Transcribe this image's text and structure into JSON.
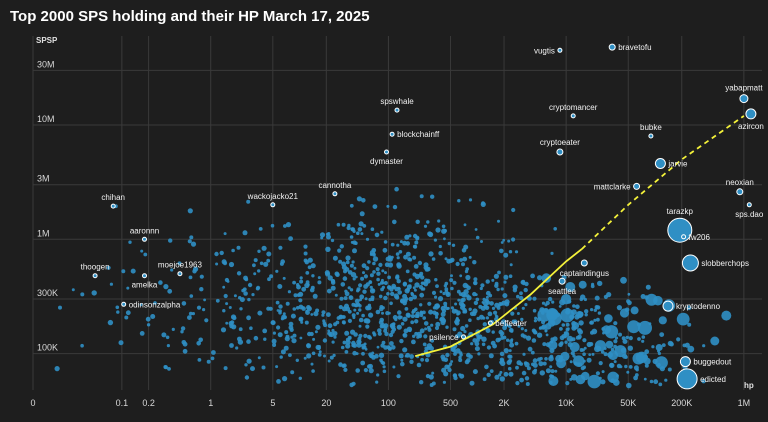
{
  "chart_data": {
    "type": "scatter",
    "title": "Top 2000 SPS holding and their HP March 17, 2025",
    "xlabel": "hp",
    "ylabel": "SPSP",
    "x_scale": "log",
    "y_scale": "log",
    "x_ticks": [
      {
        "v": 0.01,
        "label": "0"
      },
      {
        "v": 0.1,
        "label": "0.1"
      },
      {
        "v": 0.2,
        "label": "0.2"
      },
      {
        "v": 1,
        "label": "1"
      },
      {
        "v": 5,
        "label": "5"
      },
      {
        "v": 20,
        "label": "20"
      },
      {
        "v": 100,
        "label": "100"
      },
      {
        "v": 500,
        "label": "500"
      },
      {
        "v": 2000,
        "label": "2K"
      },
      {
        "v": 10000,
        "label": "10K"
      },
      {
        "v": 50000,
        "label": "50K"
      },
      {
        "v": 200000,
        "label": "200K"
      },
      {
        "v": 1000000,
        "label": "1M"
      }
    ],
    "y_ticks": [
      {
        "v": 100000,
        "label": "100K"
      },
      {
        "v": 300000,
        "label": "300K"
      },
      {
        "v": 1000000,
        "label": "1M"
      },
      {
        "v": 3000000,
        "label": "3M"
      },
      {
        "v": 10000000,
        "label": "10M"
      },
      {
        "v": 30000000,
        "label": "30M"
      }
    ],
    "xlim": [
      0.01,
      1600000
    ],
    "ylim": [
      48000,
      60000000
    ],
    "grid": true,
    "point_color": "#2f8fc4",
    "labeled_points": [
      {
        "name": "vugtis",
        "x": 8500,
        "y": 45000000,
        "size": 2,
        "label_pos": "left"
      },
      {
        "name": "bravetofu",
        "x": 33000,
        "y": 48000000,
        "size": 3,
        "label_pos": "right"
      },
      {
        "name": "yabapmatt",
        "x": 1000000,
        "y": 17000000,
        "size": 4,
        "label_pos": "top"
      },
      {
        "name": "azircon",
        "x": 1200000,
        "y": 12500000,
        "size": 5,
        "label_pos": "below"
      },
      {
        "name": "spswhale",
        "x": 125,
        "y": 13500000,
        "size": 2,
        "label_pos": "top"
      },
      {
        "name": "cryptomancer",
        "x": 12000,
        "y": 12000000,
        "size": 2,
        "label_pos": "top"
      },
      {
        "name": "blockchainff",
        "x": 110,
        "y": 8300000,
        "size": 2,
        "label_pos": "right"
      },
      {
        "name": "bubke",
        "x": 90000,
        "y": 8000000,
        "size": 2,
        "label_pos": "top"
      },
      {
        "name": "cryptoeater",
        "x": 8500,
        "y": 5800000,
        "size": 3,
        "label_pos": "top"
      },
      {
        "name": "dymaster",
        "x": 95,
        "y": 5800000,
        "size": 2,
        "label_pos": "below"
      },
      {
        "name": "jarvie",
        "x": 115000,
        "y": 4600000,
        "size": 5,
        "label_pos": "right"
      },
      {
        "name": "mattclarke",
        "x": 62000,
        "y": 2900000,
        "size": 3,
        "label_pos": "left"
      },
      {
        "name": "neoxian",
        "x": 900000,
        "y": 2600000,
        "size": 3,
        "label_pos": "top"
      },
      {
        "name": "cannotha",
        "x": 25,
        "y": 2500000,
        "size": 2,
        "label_pos": "top"
      },
      {
        "name": "wackojacko21",
        "x": 5,
        "y": 2000000,
        "size": 2,
        "label_pos": "top"
      },
      {
        "name": "chihan",
        "x": 0.08,
        "y": 1950000,
        "size": 2,
        "label_pos": "top"
      },
      {
        "name": "sps.dao",
        "x": 1150000,
        "y": 2000000,
        "size": 2,
        "label_pos": "below"
      },
      {
        "name": "tarazkp",
        "x": 190000,
        "y": 1200000,
        "size": 12,
        "label_pos": "top"
      },
      {
        "name": "fw206",
        "x": 210000,
        "y": 1050000,
        "size": 2,
        "label_pos": "right"
      },
      {
        "name": "aaronnn",
        "x": 0.18,
        "y": 1000000,
        "size": 2,
        "label_pos": "top"
      },
      {
        "name": "slobberchops",
        "x": 250000,
        "y": 620000,
        "size": 8,
        "label_pos": "right"
      },
      {
        "name": "captaindingus",
        "x": 16000,
        "y": 620000,
        "size": 3,
        "label_pos": "below"
      },
      {
        "name": "moejoe1963",
        "x": 0.45,
        "y": 500000,
        "size": 2,
        "label_pos": "top"
      },
      {
        "name": "thoogen",
        "x": 0.05,
        "y": 480000,
        "size": 2,
        "label_pos": "top"
      },
      {
        "name": "amelka",
        "x": 0.18,
        "y": 480000,
        "size": 2,
        "label_pos": "below"
      },
      {
        "name": "seattlea",
        "x": 9000,
        "y": 430000,
        "size": 3,
        "label_pos": "below"
      },
      {
        "name": "kryptodenno",
        "x": 140000,
        "y": 260000,
        "size": 5,
        "label_pos": "right"
      },
      {
        "name": "odinsonzalpha",
        "x": 0.105,
        "y": 270000,
        "size": 2,
        "label_pos": "right"
      },
      {
        "name": "beffeater",
        "x": 1400,
        "y": 185000,
        "size": 2,
        "label_pos": "right"
      },
      {
        "name": "psilence",
        "x": 700,
        "y": 140000,
        "size": 2,
        "label_pos": "left"
      },
      {
        "name": "buggedout",
        "x": 220000,
        "y": 85000,
        "size": 5,
        "label_pos": "right"
      },
      {
        "name": "edicted",
        "x": 230000,
        "y": 60000,
        "size": 10,
        "label_pos": "right"
      }
    ],
    "trend_line": {
      "color": "#f4f23a",
      "solid": [
        [
          200,
          95000
        ],
        [
          500,
          115000
        ],
        [
          1500,
          180000
        ],
        [
          4000,
          330000
        ],
        [
          10000,
          640000
        ],
        [
          15000,
          820000
        ]
      ],
      "dashed": [
        [
          15000,
          820000
        ],
        [
          50000,
          2000000
        ],
        [
          200000,
          5000000
        ],
        [
          1000000,
          12000000
        ]
      ]
    }
  }
}
